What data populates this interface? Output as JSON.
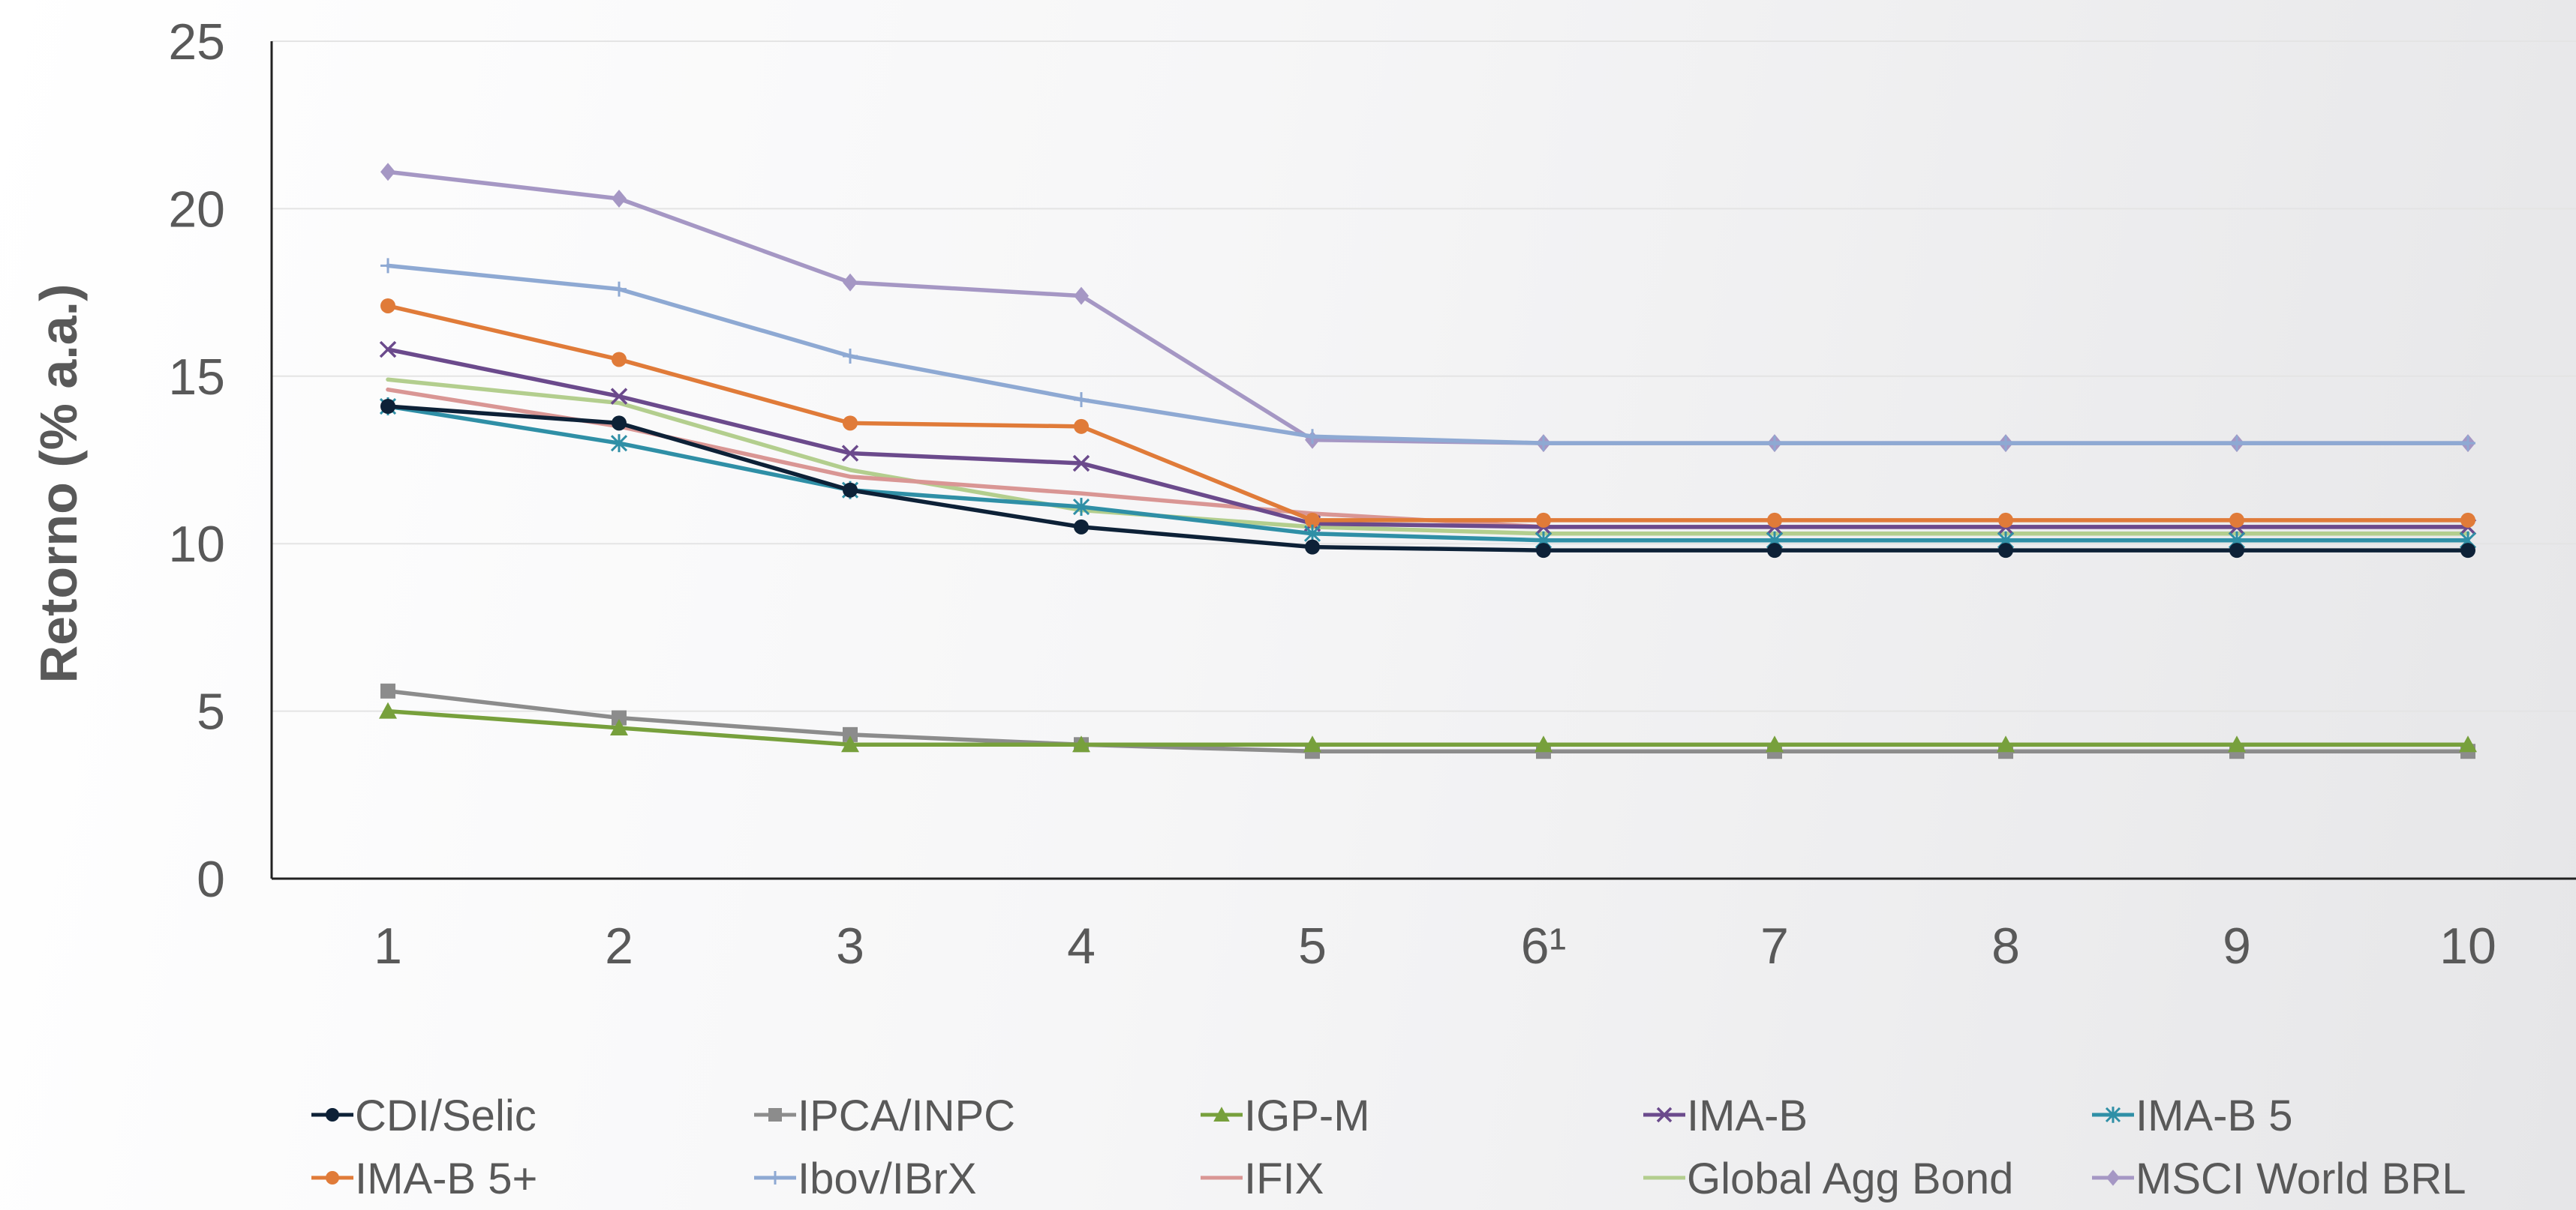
{
  "chart_data": {
    "type": "line",
    "ylabel": "Retorno (% a.a.)",
    "xlabel": "",
    "title": "",
    "categories": [
      "1",
      "2",
      "3",
      "4",
      "5",
      "6¹",
      "7",
      "8",
      "9",
      "10"
    ],
    "ylim": [
      0,
      25
    ],
    "yticks": [
      0,
      5,
      10,
      15,
      20,
      25
    ],
    "grid": true,
    "legend_position": "bottom",
    "series": [
      {
        "name": "CDI/Selic",
        "color": "#0d2137",
        "marker": "circle",
        "values": [
          14.1,
          13.6,
          11.6,
          10.5,
          9.9,
          9.8,
          9.8,
          9.8,
          9.8,
          9.8
        ]
      },
      {
        "name": "IPCA/INPC",
        "color": "#8c8c8c",
        "marker": "square",
        "values": [
          5.6,
          4.8,
          4.3,
          4.0,
          3.8,
          3.8,
          3.8,
          3.8,
          3.8,
          3.8
        ]
      },
      {
        "name": "IGP-M",
        "color": "#77a03c",
        "marker": "triangle",
        "values": [
          5.0,
          4.5,
          4.0,
          4.0,
          4.0,
          4.0,
          4.0,
          4.0,
          4.0,
          4.0
        ]
      },
      {
        "name": "IMA-B",
        "color": "#6b4a8c",
        "marker": "x",
        "values": [
          15.8,
          14.4,
          12.7,
          12.4,
          10.6,
          10.5,
          10.5,
          10.5,
          10.5,
          10.5
        ]
      },
      {
        "name": "IMA-B 5",
        "color": "#2f8fa6",
        "marker": "star",
        "values": [
          14.1,
          13.0,
          11.6,
          11.1,
          10.3,
          10.1,
          10.1,
          10.1,
          10.1,
          10.1
        ]
      },
      {
        "name": "IMA-B 5+",
        "color": "#e07b39",
        "marker": "circle",
        "values": [
          17.1,
          15.5,
          13.6,
          13.5,
          10.7,
          10.7,
          10.7,
          10.7,
          10.7,
          10.7
        ]
      },
      {
        "name": "Ibov/IBrX",
        "color": "#8ea9d3",
        "marker": "plus",
        "values": [
          18.3,
          17.6,
          15.6,
          14.3,
          13.2,
          13.0,
          13.0,
          13.0,
          13.0,
          13.0
        ]
      },
      {
        "name": "IFIX",
        "color": "#d99694",
        "marker": "none",
        "values": [
          14.6,
          13.5,
          12.0,
          11.5,
          10.9,
          10.5,
          10.5,
          10.5,
          10.5,
          10.5
        ]
      },
      {
        "name": "Global Agg Bond",
        "color": "#b3ce8e",
        "marker": "none",
        "values": [
          14.9,
          14.2,
          12.2,
          11.0,
          10.5,
          10.3,
          10.3,
          10.3,
          10.3,
          10.3
        ]
      },
      {
        "name": "MSCI World BRL",
        "color": "#a597c4",
        "marker": "diamond",
        "values": [
          21.1,
          20.3,
          17.8,
          17.4,
          13.1,
          13.0,
          13.0,
          13.0,
          13.0,
          13.0
        ]
      }
    ]
  }
}
